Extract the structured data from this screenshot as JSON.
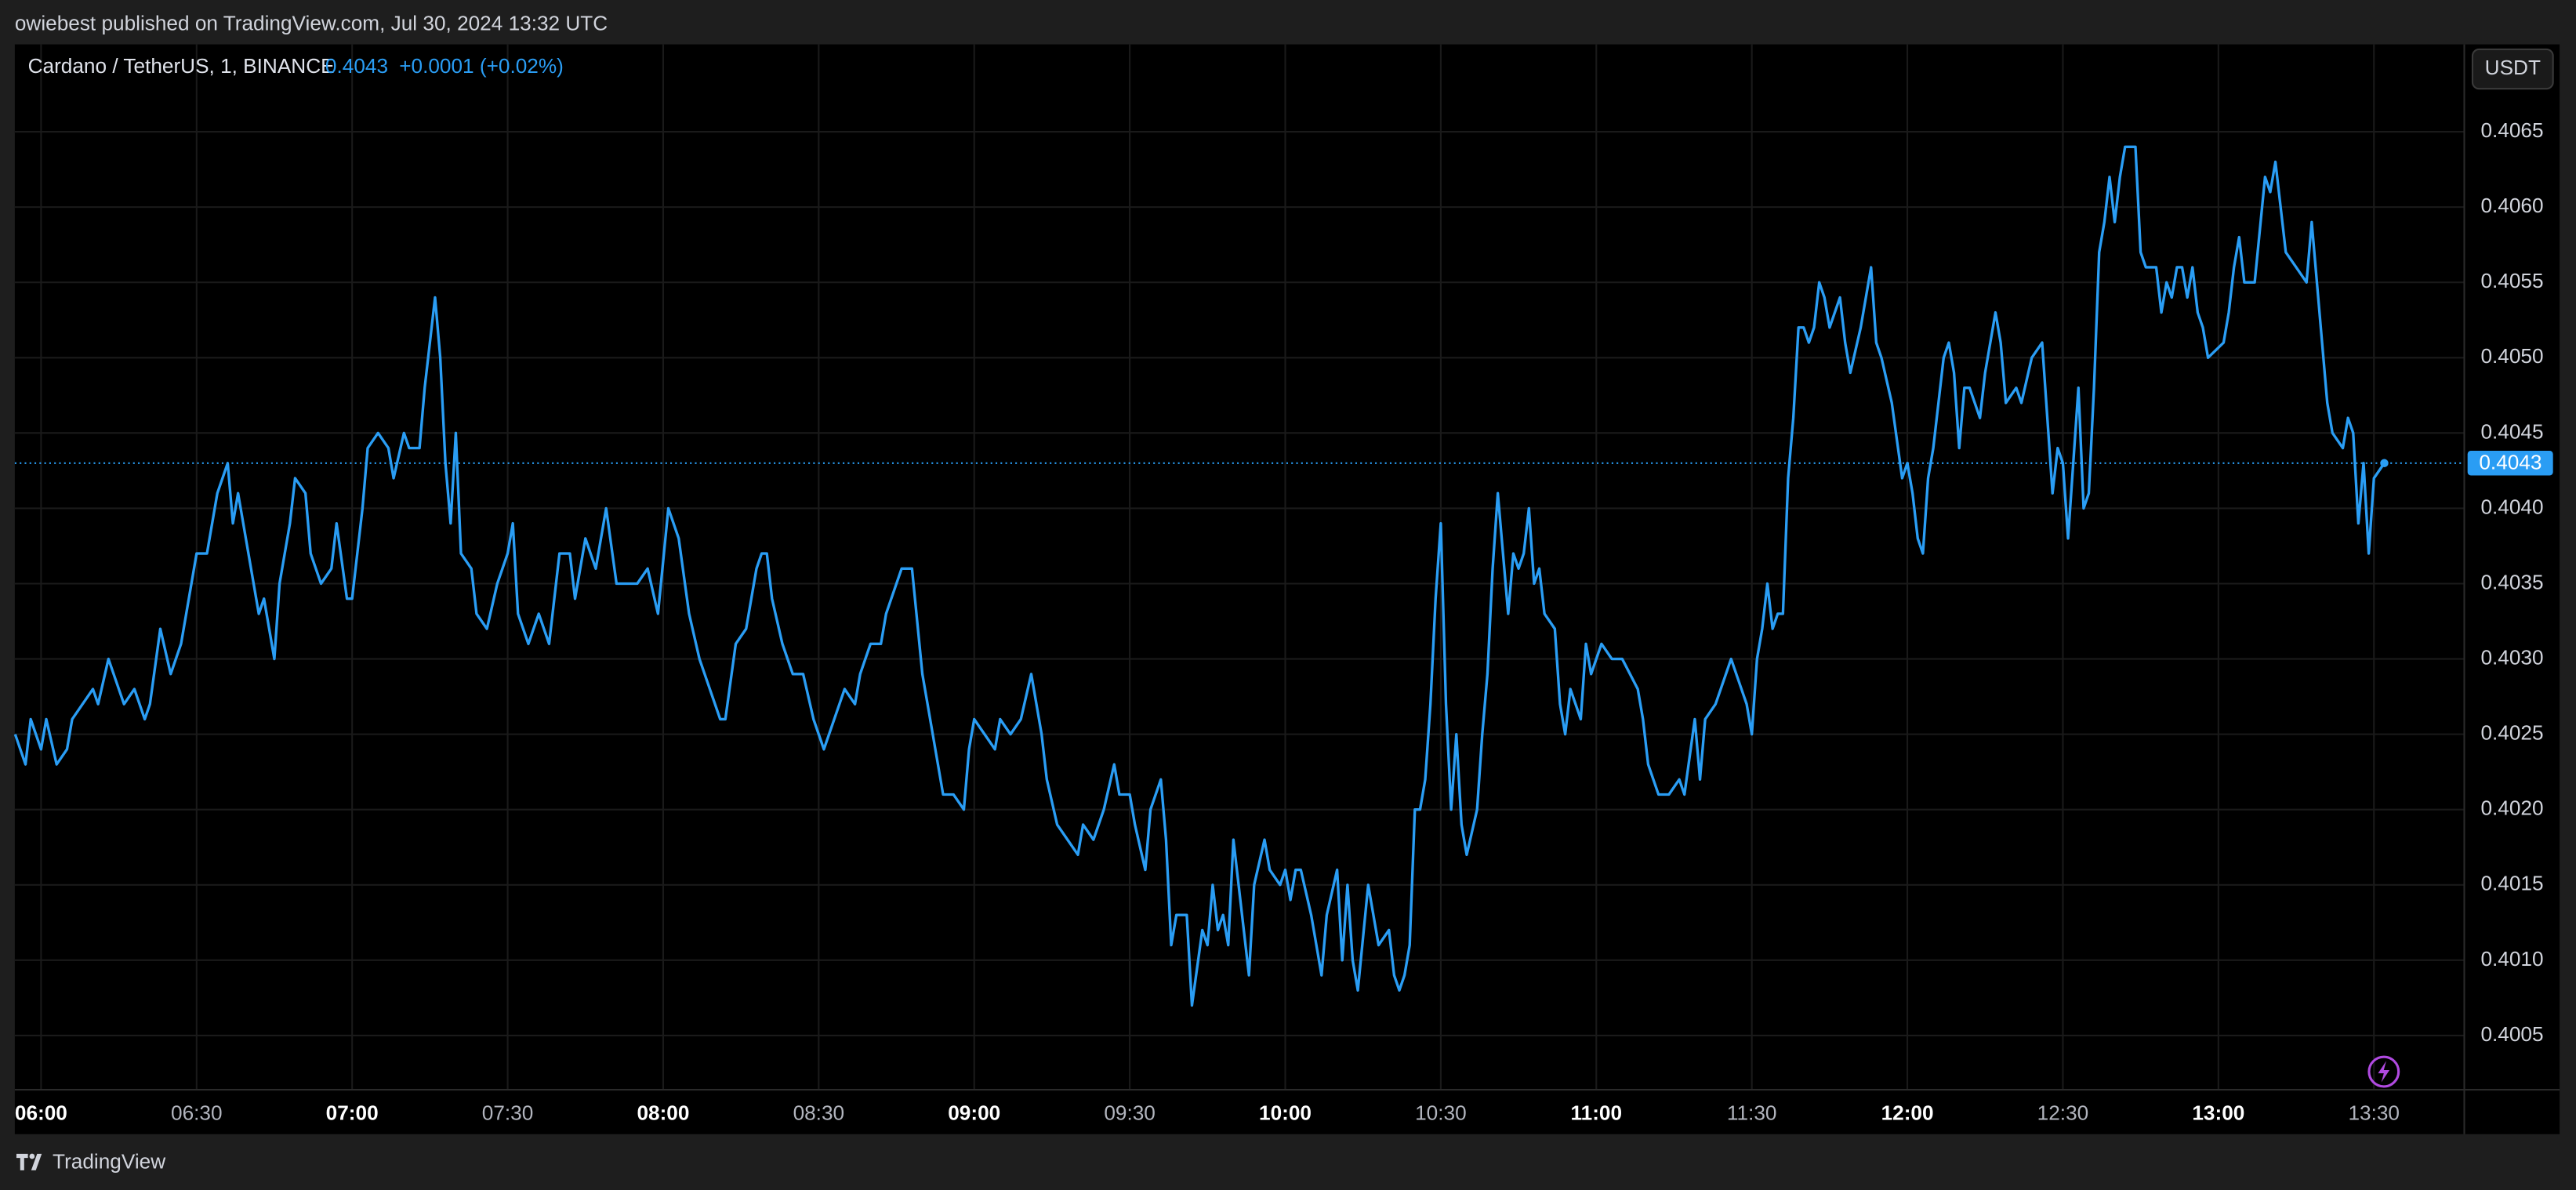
{
  "header": {
    "publisher": "owiebest published on TradingView.com, Jul 30, 2024 13:32 UTC"
  },
  "chart_data": {
    "type": "line",
    "change": "+0.0001 (+0.02%)",
    "last_price": 0.4043,
    "currency": "USDT",
    "grid": true,
    "x": [
      "05:55",
      "05:57",
      "05:58",
      "06:00",
      "06:01",
      "06:03",
      "06:05",
      "06:06",
      "06:08",
      "06:10",
      "06:11",
      "06:13",
      "06:15",
      "06:16",
      "06:18",
      "06:20",
      "06:21",
      "06:23",
      "06:25",
      "06:27",
      "06:28",
      "06:30",
      "06:32",
      "06:34",
      "06:36",
      "06:37",
      "06:38",
      "06:40",
      "06:42",
      "06:43",
      "06:45",
      "06:46",
      "06:48",
      "06:49",
      "06:51",
      "06:52",
      "06:54",
      "06:56",
      "06:57",
      "06:59",
      "07:00",
      "07:02",
      "07:03",
      "07:05",
      "07:07",
      "07:08",
      "07:10",
      "07:11",
      "07:13",
      "07:14",
      "07:16",
      "07:17",
      "07:18",
      "07:19",
      "07:20",
      "07:21",
      "07:23",
      "07:24",
      "07:26",
      "07:28",
      "07:30",
      "07:31",
      "07:32",
      "07:34",
      "07:36",
      "07:38",
      "07:40",
      "07:42",
      "07:43",
      "07:45",
      "07:47",
      "07:49",
      "07:51",
      "07:53",
      "07:55",
      "07:57",
      "07:59",
      "08:01",
      "08:03",
      "08:05",
      "08:07",
      "08:09",
      "08:11",
      "08:12",
      "08:14",
      "08:16",
      "08:18",
      "08:19",
      "08:20",
      "08:21",
      "08:23",
      "08:25",
      "08:27",
      "08:29",
      "08:31",
      "08:33",
      "08:35",
      "08:37",
      "08:38",
      "08:40",
      "08:42",
      "08:43",
      "08:44",
      "08:46",
      "08:48",
      "08:50",
      "08:52",
      "08:54",
      "08:56",
      "08:58",
      "08:59",
      "09:00",
      "09:02",
      "09:04",
      "09:05",
      "09:07",
      "09:09",
      "09:11",
      "09:13",
      "09:14",
      "09:16",
      "09:18",
      "09:20",
      "09:21",
      "09:23",
      "09:25",
      "09:27",
      "09:28",
      "09:30",
      "09:31",
      "09:33",
      "09:34",
      "09:36",
      "09:37",
      "09:38",
      "09:39",
      "09:41",
      "09:42",
      "09:44",
      "09:45",
      "09:46",
      "09:47",
      "09:48",
      "09:49",
      "09:50",
      "09:51",
      "09:53",
      "09:54",
      "09:56",
      "09:57",
      "09:59",
      "10:00",
      "10:01",
      "10:02",
      "10:03",
      "10:05",
      "10:06",
      "10:07",
      "10:08",
      "10:10",
      "10:11",
      "10:12",
      "10:13",
      "10:14",
      "10:16",
      "10:18",
      "10:20",
      "10:21",
      "10:22",
      "10:23",
      "10:24",
      "10:25",
      "10:26",
      "10:27",
      "10:28",
      "10:29",
      "10:30",
      "10:31",
      "10:32",
      "10:33",
      "10:34",
      "10:35",
      "10:37",
      "10:38",
      "10:39",
      "10:40",
      "10:41",
      "10:42",
      "10:43",
      "10:44",
      "10:45",
      "10:46",
      "10:47",
      "10:48",
      "10:49",
      "10:50",
      "10:52",
      "10:53",
      "10:54",
      "10:55",
      "10:57",
      "10:58",
      "10:59",
      "11:01",
      "11:03",
      "11:05",
      "11:08",
      "11:09",
      "11:10",
      "11:12",
      "11:14",
      "11:16",
      "11:17",
      "11:19",
      "11:20",
      "11:21",
      "11:23",
      "11:25",
      "11:26",
      "11:28",
      "11:29",
      "11:30",
      "11:31",
      "11:32",
      "11:33",
      "11:34",
      "11:35",
      "11:36",
      "11:37",
      "11:38",
      "11:39",
      "11:40",
      "11:41",
      "11:42",
      "11:43",
      "11:44",
      "11:45",
      "11:47",
      "11:48",
      "11:49",
      "11:51",
      "11:53",
      "11:54",
      "11:55",
      "11:57",
      "11:59",
      "12:00",
      "12:01",
      "12:02",
      "12:03",
      "12:04",
      "12:05",
      "12:07",
      "12:08",
      "12:09",
      "12:10",
      "12:11",
      "12:12",
      "12:14",
      "12:15",
      "12:17",
      "12:18",
      "12:19",
      "12:21",
      "12:22",
      "12:24",
      "12:26",
      "12:27",
      "12:28",
      "12:29",
      "12:30",
      "12:31",
      "12:32",
      "12:33",
      "12:34",
      "12:35",
      "12:36",
      "12:37",
      "12:38",
      "12:39",
      "12:40",
      "12:41",
      "12:42",
      "12:44",
      "12:45",
      "12:46",
      "12:48",
      "12:49",
      "12:50",
      "12:51",
      "12:52",
      "12:53",
      "12:54",
      "12:55",
      "12:56",
      "12:57",
      "12:58",
      "13:01",
      "13:02",
      "13:03",
      "13:04",
      "13:05",
      "13:07",
      "13:09",
      "13:10",
      "13:11",
      "13:12",
      "13:13",
      "13:15",
      "13:17",
      "13:18",
      "13:19",
      "13:20",
      "13:21",
      "13:22",
      "13:24",
      "13:25",
      "13:26",
      "13:27",
      "13:28",
      "13:29",
      "13:30",
      "13:32"
    ],
    "series": [
      {
        "name": "Cardano / TetherUS, 1, BINANCE",
        "color": "#2a9df4",
        "values": [
          0.4025,
          0.4023,
          0.4026,
          0.4024,
          0.4026,
          0.4023,
          0.4024,
          0.4026,
          0.4027,
          0.4028,
          0.4027,
          0.403,
          0.4028,
          0.4027,
          0.4028,
          0.4026,
          0.4027,
          0.4032,
          0.4029,
          0.4031,
          0.4033,
          0.4037,
          0.4037,
          0.4041,
          0.4043,
          0.4039,
          0.4041,
          0.4037,
          0.4033,
          0.4034,
          0.403,
          0.4035,
          0.4039,
          0.4042,
          0.4041,
          0.4037,
          0.4035,
          0.4036,
          0.4039,
          0.4034,
          0.4034,
          0.404,
          0.4044,
          0.4045,
          0.4044,
          0.4042,
          0.4045,
          0.4044,
          0.4044,
          0.4048,
          0.4054,
          0.405,
          0.4043,
          0.4039,
          0.4045,
          0.4037,
          0.4036,
          0.4033,
          0.4032,
          0.4035,
          0.4037,
          0.4039,
          0.4033,
          0.4031,
          0.4033,
          0.4031,
          0.4037,
          0.4037,
          0.4034,
          0.4038,
          0.4036,
          0.404,
          0.4035,
          0.4035,
          0.4035,
          0.4036,
          0.4033,
          0.404,
          0.4038,
          0.4033,
          0.403,
          0.4028,
          0.4026,
          0.4026,
          0.4031,
          0.4032,
          0.4036,
          0.4037,
          0.4037,
          0.4034,
          0.4031,
          0.4029,
          0.4029,
          0.4026,
          0.4024,
          0.4026,
          0.4028,
          0.4027,
          0.4029,
          0.4031,
          0.4031,
          0.4033,
          0.4034,
          0.4036,
          0.4036,
          0.4029,
          0.4025,
          0.4021,
          0.4021,
          0.402,
          0.4024,
          0.4026,
          0.4025,
          0.4024,
          0.4026,
          0.4025,
          0.4026,
          0.4029,
          0.4025,
          0.4022,
          0.4019,
          0.4018,
          0.4017,
          0.4019,
          0.4018,
          0.402,
          0.4023,
          0.4021,
          0.4021,
          0.4019,
          0.4016,
          0.402,
          0.4022,
          0.4018,
          0.4011,
          0.4013,
          0.4013,
          0.4007,
          0.4012,
          0.4011,
          0.4015,
          0.4012,
          0.4013,
          0.4011,
          0.4018,
          0.4015,
          0.4009,
          0.4015,
          0.4018,
          0.4016,
          0.4015,
          0.4016,
          0.4014,
          0.4016,
          0.4016,
          0.4013,
          0.4011,
          0.4009,
          0.4013,
          0.4016,
          0.401,
          0.4015,
          0.401,
          0.4008,
          0.4015,
          0.4011,
          0.4012,
          0.4009,
          0.4008,
          0.4009,
          0.4011,
          0.402,
          0.402,
          0.4022,
          0.4027,
          0.4034,
          0.4039,
          0.4027,
          0.402,
          0.4025,
          0.4019,
          0.4017,
          0.402,
          0.4025,
          0.4029,
          0.4036,
          0.4041,
          0.4037,
          0.4033,
          0.4037,
          0.4036,
          0.4037,
          0.404,
          0.4035,
          0.4036,
          0.4033,
          0.4032,
          0.4027,
          0.4025,
          0.4028,
          0.4026,
          0.4031,
          0.4029,
          0.4031,
          0.403,
          0.403,
          0.4028,
          0.4026,
          0.4023,
          0.4021,
          0.4021,
          0.4022,
          0.4021,
          0.4026,
          0.4022,
          0.4026,
          0.4027,
          0.4029,
          0.403,
          0.4028,
          0.4027,
          0.4025,
          0.403,
          0.4032,
          0.4035,
          0.4032,
          0.4033,
          0.4033,
          0.4042,
          0.4046,
          0.4052,
          0.4052,
          0.4051,
          0.4052,
          0.4055,
          0.4054,
          0.4052,
          0.4054,
          0.4051,
          0.4049,
          0.4052,
          0.4056,
          0.4051,
          0.405,
          0.4047,
          0.4042,
          0.4043,
          0.4041,
          0.4038,
          0.4037,
          0.4042,
          0.4044,
          0.405,
          0.4051,
          0.4049,
          0.4044,
          0.4048,
          0.4048,
          0.4046,
          0.4049,
          0.4053,
          0.4051,
          0.4047,
          0.4048,
          0.4047,
          0.405,
          0.4051,
          0.4046,
          0.4041,
          0.4044,
          0.4043,
          0.4038,
          0.4043,
          0.4048,
          0.404,
          0.4041,
          0.4048,
          0.4057,
          0.4059,
          0.4062,
          0.4059,
          0.4062,
          0.4064,
          0.4064,
          0.4057,
          0.4056,
          0.4056,
          0.4053,
          0.4055,
          0.4054,
          0.4056,
          0.4056,
          0.4054,
          0.4056,
          0.4053,
          0.4052,
          0.405,
          0.4051,
          0.4053,
          0.4056,
          0.4058,
          0.4055,
          0.4055,
          0.4062,
          0.4061,
          0.4063,
          0.406,
          0.4057,
          0.4056,
          0.4055,
          0.4059,
          0.4055,
          0.4051,
          0.4047,
          0.4045,
          0.4044,
          0.4046,
          0.4045,
          0.4039,
          0.4043,
          0.4037,
          0.4042,
          0.4043
        ]
      }
    ],
    "xticks": [
      "06:00",
      "06:30",
      "07:00",
      "07:30",
      "08:00",
      "08:30",
      "09:00",
      "09:30",
      "10:00",
      "10:30",
      "11:00",
      "11:30",
      "12:00",
      "12:30",
      "13:00",
      "13:30"
    ],
    "ylim": [
      0.40014,
      0.40708
    ],
    "yticks": [
      0.4005,
      {
        "value": 0.401,
        "label": "0.4010"
      },
      0.4015,
      {
        "value": 0.402,
        "label": "0.4020"
      },
      0.4025,
      {
        "value": 0.403,
        "label": "0.4030"
      },
      0.4035,
      {
        "value": 0.404,
        "label": "0.4040"
      },
      0.4045,
      {
        "value": 0.405,
        "label": "0.4050"
      },
      0.4055,
      {
        "value": 0.406,
        "label": "0.4060"
      },
      0.4065
    ]
  },
  "footer": {
    "brand": "TradingView"
  }
}
